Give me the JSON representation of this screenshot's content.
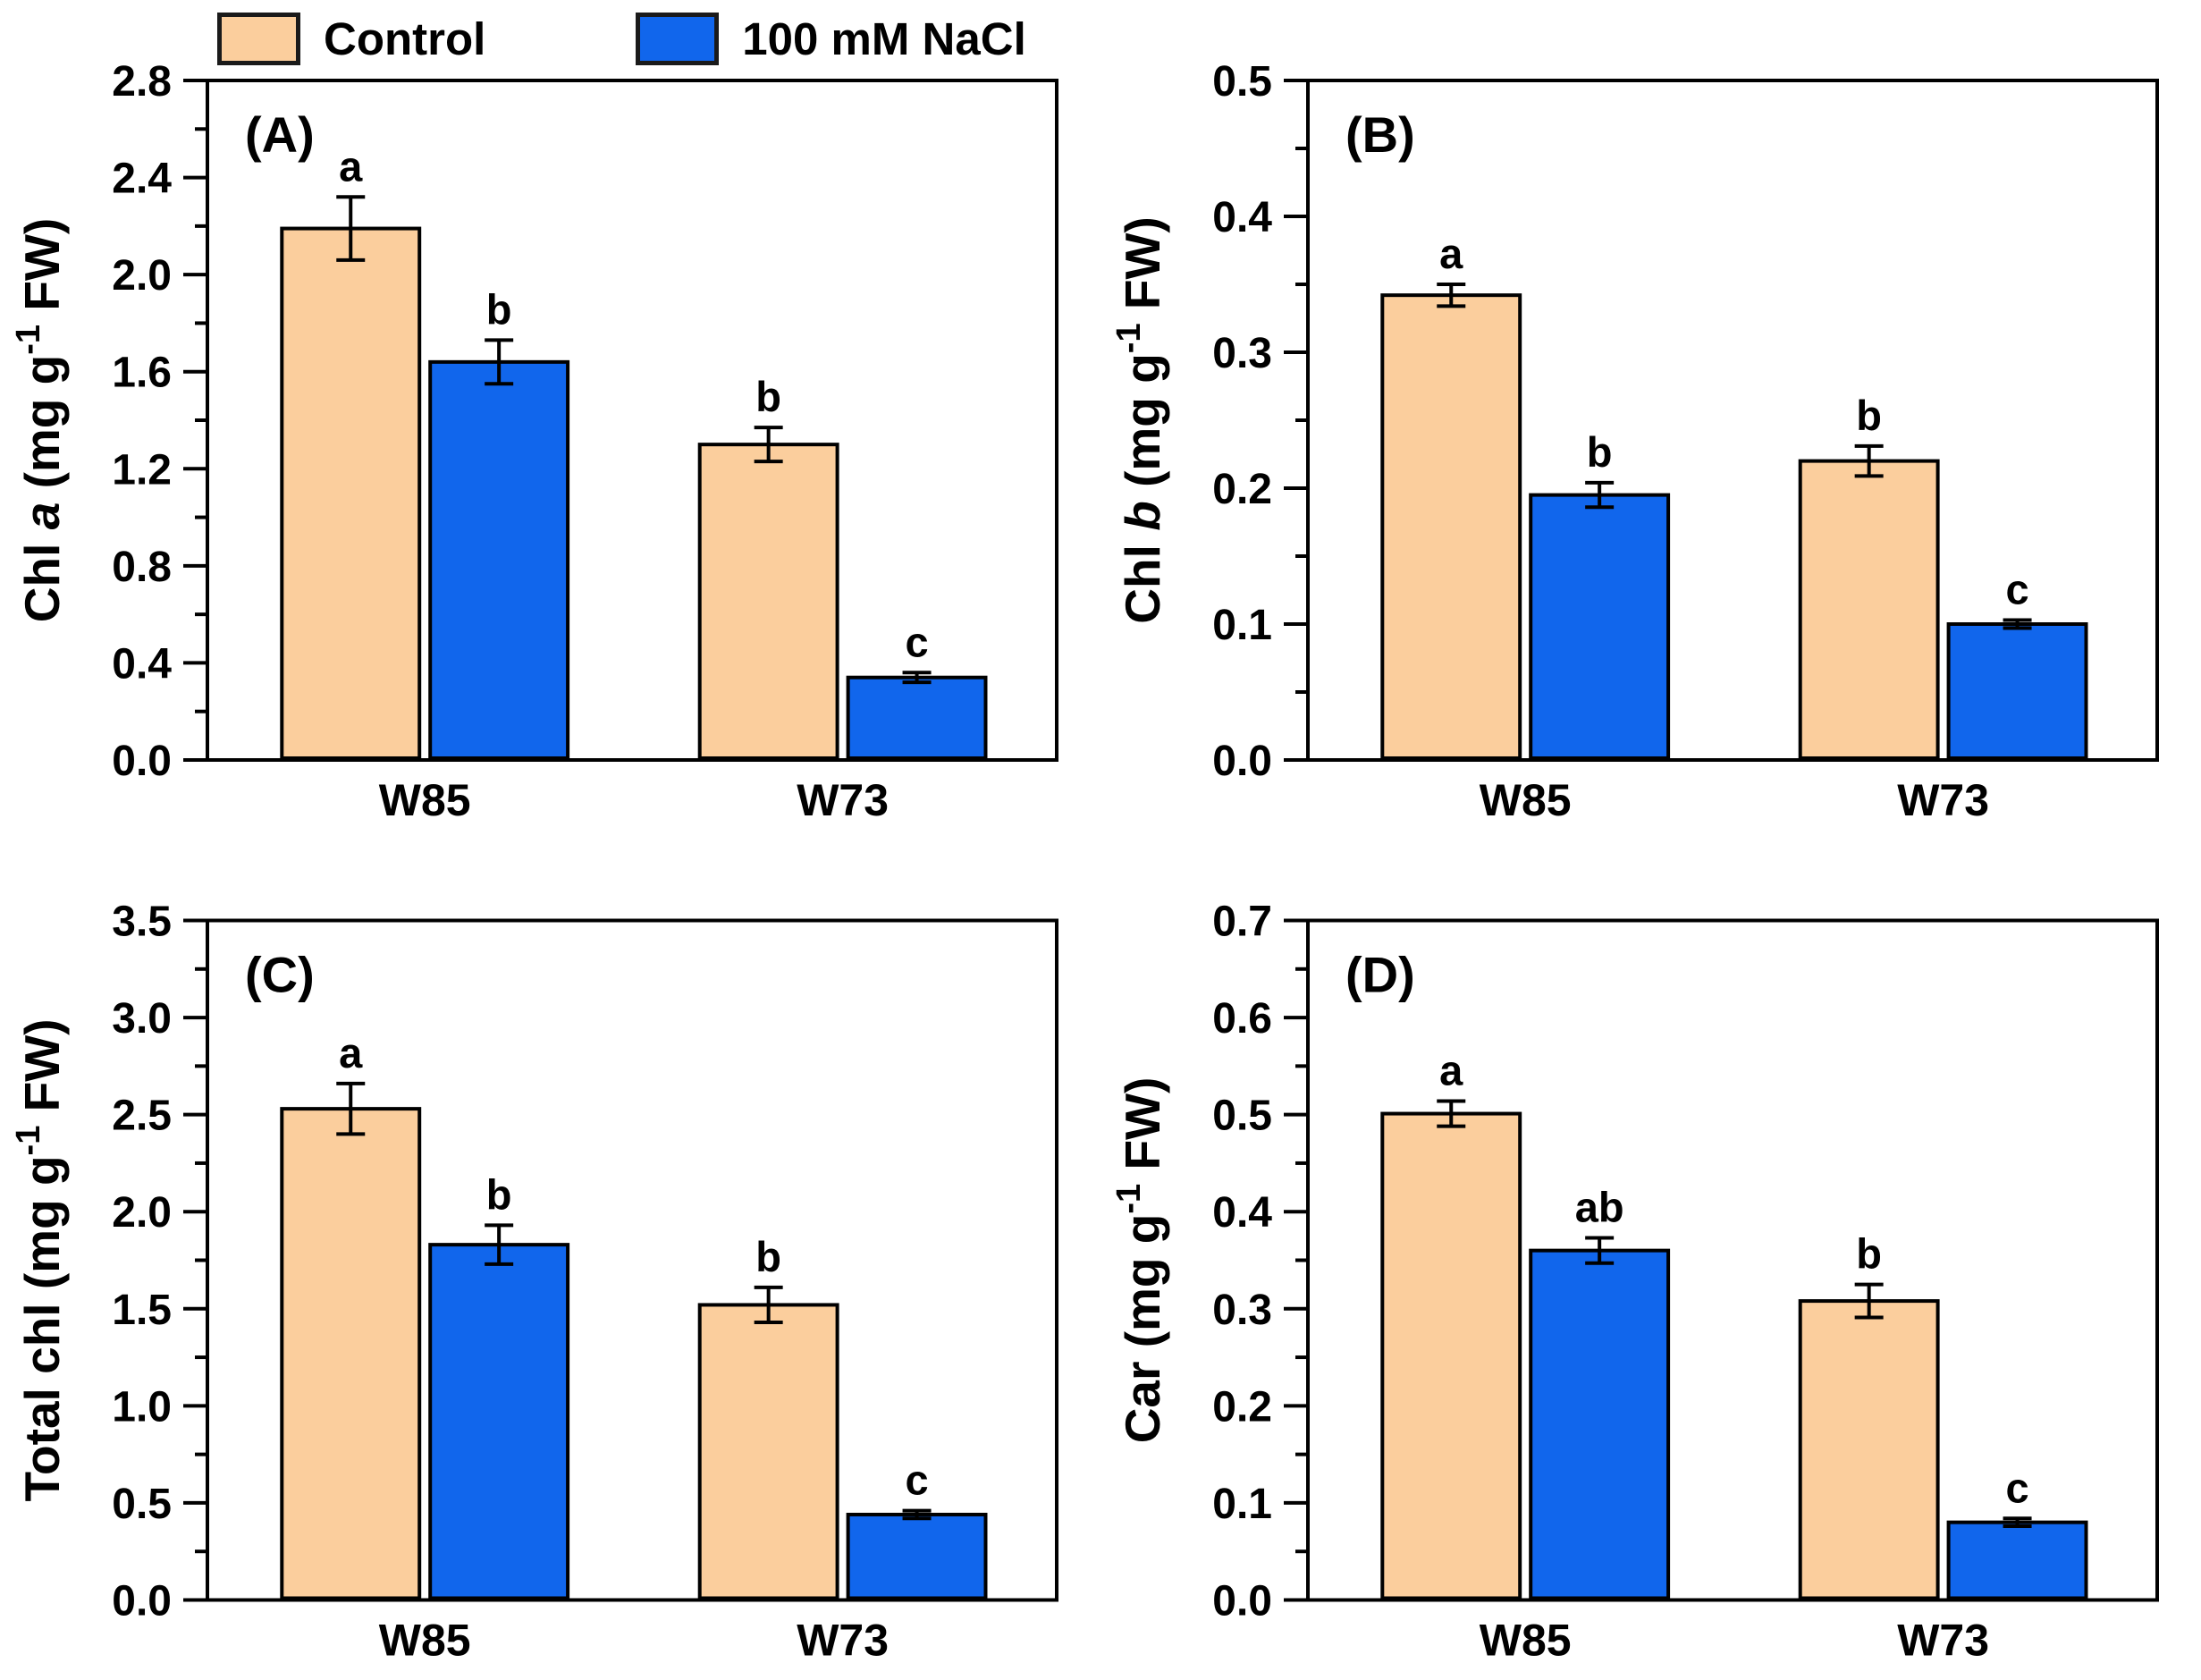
{
  "legend": {
    "items": [
      {
        "label": "Control",
        "color": "#FBCE9D"
      },
      {
        "label": "100 mM NaCl",
        "color": "#1166EC"
      }
    ]
  },
  "axis_color": "#000000",
  "chart_data": [
    {
      "type": "bar",
      "panel_label": "(A)",
      "ylabel_text": "Chl a (mg g⁻¹ FW)",
      "ylabel_parts": [
        {
          "t": "Chl "
        },
        {
          "t": "a",
          "italic": true
        },
        {
          "t": " (mg g"
        },
        {
          "t": "-1",
          "sup": true
        },
        {
          "t": " FW)"
        }
      ],
      "categories": [
        "W85",
        "W73"
      ],
      "ylim": [
        0,
        2.8
      ],
      "major_tick": 0.4,
      "minor_tick": 0.2,
      "tick_decimals": 1,
      "grid": false,
      "legend_position": "top-outside",
      "series": [
        {
          "name": "Control",
          "values": [
            2.19,
            1.3
          ],
          "errors": [
            0.13,
            0.07
          ],
          "letters": [
            "a",
            "b"
          ]
        },
        {
          "name": "100 mM NaCl",
          "values": [
            1.64,
            0.34
          ],
          "errors": [
            0.09,
            0.02
          ],
          "letters": [
            "b",
            "c"
          ]
        }
      ]
    },
    {
      "type": "bar",
      "panel_label": "(B)",
      "ylabel_text": "Chl b (mg g⁻¹ FW)",
      "ylabel_parts": [
        {
          "t": "Chl "
        },
        {
          "t": "b",
          "italic": true
        },
        {
          "t": " (mg g"
        },
        {
          "t": "-1",
          "sup": true
        },
        {
          "t": " FW)"
        }
      ],
      "categories": [
        "W85",
        "W73"
      ],
      "ylim": [
        0,
        0.5
      ],
      "major_tick": 0.1,
      "minor_tick": 0.05,
      "tick_decimals": 1,
      "grid": false,
      "series": [
        {
          "name": "Control",
          "values": [
            0.342,
            0.22
          ],
          "errors": [
            0.008,
            0.011
          ],
          "letters": [
            "a",
            "b"
          ]
        },
        {
          "name": "100 mM NaCl",
          "values": [
            0.195,
            0.1
          ],
          "errors": [
            0.009,
            0.003
          ],
          "letters": [
            "b",
            "c"
          ]
        }
      ]
    },
    {
      "type": "bar",
      "panel_label": "(C)",
      "ylabel_text": "Total chl (mg g⁻¹ FW)",
      "ylabel_parts": [
        {
          "t": "Total chl (mg g"
        },
        {
          "t": "-1",
          "sup": true
        },
        {
          "t": " FW)"
        }
      ],
      "categories": [
        "W85",
        "W73"
      ],
      "ylim": [
        0,
        3.5
      ],
      "major_tick": 0.5,
      "minor_tick": 0.25,
      "tick_decimals": 1,
      "grid": false,
      "series": [
        {
          "name": "Control",
          "values": [
            2.53,
            1.52
          ],
          "errors": [
            0.13,
            0.09
          ],
          "letters": [
            "a",
            "b"
          ]
        },
        {
          "name": "100 mM NaCl",
          "values": [
            1.83,
            0.44
          ],
          "errors": [
            0.1,
            0.02
          ],
          "letters": [
            "b",
            "c"
          ]
        }
      ]
    },
    {
      "type": "bar",
      "panel_label": "(D)",
      "ylabel_text": "Car (mg g⁻¹ FW)",
      "ylabel_parts": [
        {
          "t": "Car (mg g"
        },
        {
          "t": "-1",
          "sup": true
        },
        {
          "t": " FW)"
        }
      ],
      "categories": [
        "W85",
        "W73"
      ],
      "ylim": [
        0,
        0.7
      ],
      "major_tick": 0.1,
      "minor_tick": 0.05,
      "tick_decimals": 1,
      "grid": false,
      "series": [
        {
          "name": "Control",
          "values": [
            0.501,
            0.308
          ],
          "errors": [
            0.013,
            0.017
          ],
          "letters": [
            "a",
            "b"
          ]
        },
        {
          "name": "100 mM NaCl",
          "values": [
            0.36,
            0.08
          ],
          "errors": [
            0.013,
            0.004
          ],
          "letters": [
            "ab",
            "c"
          ]
        }
      ]
    }
  ]
}
